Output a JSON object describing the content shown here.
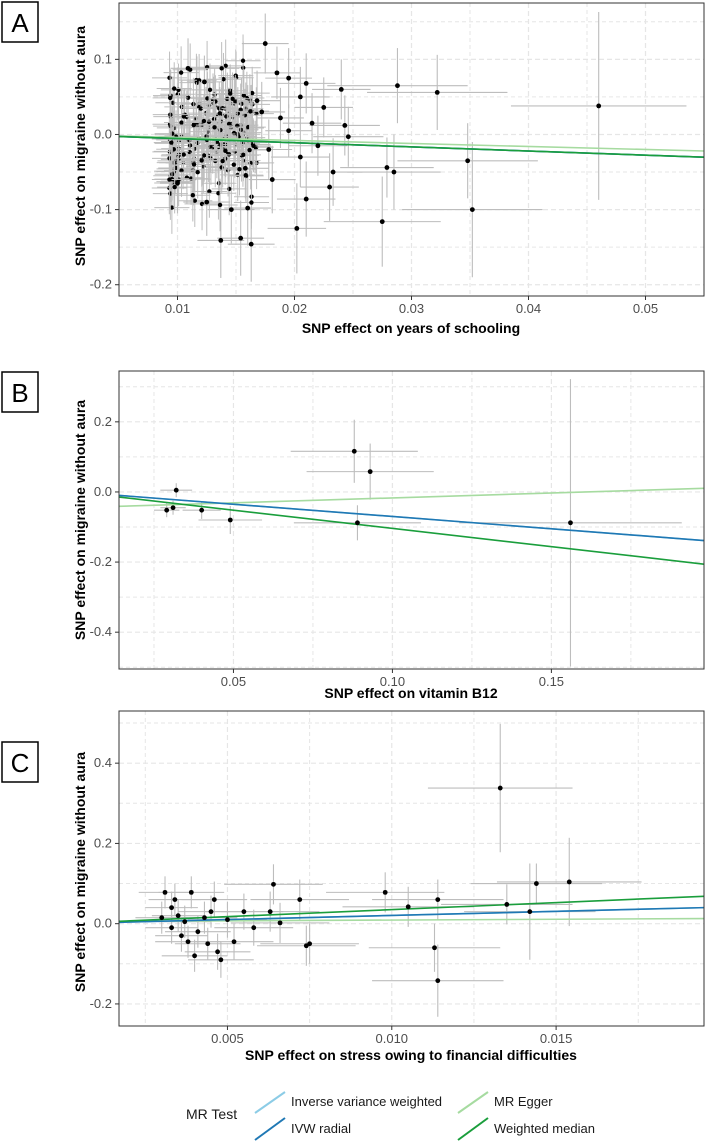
{
  "colors": {
    "ivw": "#8ccce6",
    "ivw_radial": "#1f78b4",
    "mr_egger": "#a6dba0",
    "weighted_median": "#1a9e3c",
    "point": "#000000",
    "errorbar": "#bdbdbd",
    "grid": "#e6e6e6"
  },
  "legend": {
    "title": "MR Test",
    "items": [
      {
        "key": "ivw",
        "label": "Inverse variance weighted"
      },
      {
        "key": "ivw_radial",
        "label": "IVW radial"
      },
      {
        "key": "mr_egger",
        "label": "MR Egger"
      },
      {
        "key": "weighted_median",
        "label": "Weighted median"
      }
    ]
  },
  "chart_data": [
    {
      "panel": "A",
      "type": "scatter",
      "xlabel": "SNP effect on years of schooling",
      "ylabel": "SNP effect on migraine without aura",
      "xlim": [
        0.005,
        0.055
      ],
      "ylim": [
        -0.215,
        0.175
      ],
      "xticks": [
        0.01,
        0.02,
        0.03,
        0.04,
        0.05
      ],
      "xtick_labels": [
        "0.01",
        "0.02",
        "0.03",
        "0.04",
        "0.05"
      ],
      "yticks": [
        -0.2,
        -0.1,
        0.0,
        0.1
      ],
      "ytick_labels": [
        "-0.2",
        "-0.1",
        "0.0",
        "0.1"
      ],
      "lines": [
        {
          "key": "ivw",
          "slope": -0.55
        },
        {
          "key": "mr_egger",
          "slope": -0.4
        },
        {
          "key": "ivw_radial",
          "slope": -0.55
        },
        {
          "key": "weighted_median",
          "slope": -0.55
        }
      ],
      "points": [
        {
          "x": 0.0109,
          "y": 0.088,
          "xe": 0.0015,
          "ye": 0.04
        },
        {
          "x": 0.0175,
          "y": 0.121,
          "xe": 0.002,
          "ye": 0.04
        },
        {
          "x": 0.0195,
          "y": 0.075,
          "xe": 0.002,
          "ye": 0.04
        },
        {
          "x": 0.0185,
          "y": 0.082,
          "xe": 0.002,
          "ye": 0.035
        },
        {
          "x": 0.0123,
          "y": 0.07,
          "xe": 0.0015,
          "ye": 0.035
        },
        {
          "x": 0.0205,
          "y": 0.05,
          "xe": 0.0025,
          "ye": 0.04
        },
        {
          "x": 0.021,
          "y": 0.068,
          "xe": 0.0025,
          "ye": 0.04
        },
        {
          "x": 0.0225,
          "y": 0.036,
          "xe": 0.0025,
          "ye": 0.04
        },
        {
          "x": 0.024,
          "y": 0.06,
          "xe": 0.0025,
          "ye": 0.04
        },
        {
          "x": 0.0243,
          "y": 0.012,
          "xe": 0.003,
          "ye": 0.04
        },
        {
          "x": 0.0246,
          "y": -0.003,
          "xe": 0.003,
          "ye": 0.04
        },
        {
          "x": 0.0288,
          "y": 0.065,
          "xe": 0.006,
          "ye": 0.05
        },
        {
          "x": 0.0322,
          "y": 0.056,
          "xe": 0.006,
          "ye": 0.05
        },
        {
          "x": 0.046,
          "y": 0.038,
          "xe": 0.0075,
          "ye": 0.125
        },
        {
          "x": 0.0348,
          "y": -0.035,
          "xe": 0.006,
          "ye": 0.05
        },
        {
          "x": 0.0352,
          "y": -0.1,
          "xe": 0.006,
          "ye": 0.09
        },
        {
          "x": 0.0275,
          "y": -0.116,
          "xe": 0.005,
          "ye": 0.06
        },
        {
          "x": 0.0279,
          "y": -0.044,
          "xe": 0.004,
          "ye": 0.04
        },
        {
          "x": 0.0285,
          "y": -0.05,
          "xe": 0.004,
          "ye": 0.05
        },
        {
          "x": 0.0202,
          "y": -0.125,
          "xe": 0.0025,
          "ye": 0.06
        },
        {
          "x": 0.021,
          "y": -0.086,
          "xe": 0.0025,
          "ye": 0.05
        },
        {
          "x": 0.0163,
          "y": -0.146,
          "xe": 0.002,
          "ye": 0.05
        },
        {
          "x": 0.0137,
          "y": -0.141,
          "xe": 0.002,
          "ye": 0.05
        },
        {
          "x": 0.0154,
          "y": -0.138,
          "xe": 0.002,
          "ye": 0.05
        },
        {
          "x": 0.016,
          "y": -0.098,
          "xe": 0.002,
          "ye": 0.05
        },
        {
          "x": 0.0146,
          "y": -0.1,
          "xe": 0.002,
          "ye": 0.045
        },
        {
          "x": 0.0125,
          "y": -0.09,
          "xe": 0.002,
          "ye": 0.045
        },
        {
          "x": 0.0181,
          "y": -0.06,
          "xe": 0.002,
          "ye": 0.045
        },
        {
          "x": 0.0233,
          "y": -0.05,
          "xe": 0.0025,
          "ye": 0.045
        },
        {
          "x": 0.01,
          "y": -0.065,
          "xe": 0.0015,
          "ye": 0.04
        },
        {
          "x": 0.0172,
          "y": 0.03,
          "xe": 0.002,
          "ye": 0.04
        },
        {
          "x": 0.0188,
          "y": 0.022,
          "xe": 0.002,
          "ye": 0.04
        },
        {
          "x": 0.0195,
          "y": 0.005,
          "xe": 0.002,
          "ye": 0.035
        },
        {
          "x": 0.0178,
          "y": -0.02,
          "xe": 0.002,
          "ye": 0.04
        },
        {
          "x": 0.0205,
          "y": -0.03,
          "xe": 0.0025,
          "ye": 0.04
        },
        {
          "x": 0.0168,
          "y": 0.045,
          "xe": 0.002,
          "ye": 0.04
        },
        {
          "x": 0.0158,
          "y": -0.045,
          "xe": 0.002,
          "ye": 0.04
        },
        {
          "x": 0.022,
          "y": -0.015,
          "xe": 0.0025,
          "ye": 0.04
        },
        {
          "x": 0.0215,
          "y": 0.015,
          "xe": 0.0025,
          "ye": 0.04
        },
        {
          "x": 0.023,
          "y": -0.07,
          "xe": 0.0025,
          "ye": 0.045
        }
      ]
    },
    {
      "panel": "B",
      "type": "scatter",
      "xlabel": "SNP effect on vitamin B12",
      "ylabel": "SNP effect on migraine without aura",
      "xlim": [
        0.014,
        0.198
      ],
      "ylim": [
        -0.505,
        0.345
      ],
      "xticks": [
        0.05,
        0.1,
        0.15
      ],
      "xtick_labels": [
        "0.05",
        "0.10",
        "0.15"
      ],
      "yticks": [
        -0.4,
        -0.2,
        0.0,
        0.2
      ],
      "ytick_labels": [
        "-0.4",
        "-0.2",
        "0.0",
        "0.2"
      ],
      "lines": [
        {
          "key": "mr_egger",
          "slope": 0.28,
          "intercept": -0.045
        },
        {
          "key": "ivw",
          "slope": -0.7,
          "intercept": 0.0
        },
        {
          "key": "ivw_radial",
          "slope": -0.7,
          "intercept": 0.0
        },
        {
          "key": "weighted_median",
          "slope": -1.04,
          "intercept": 0.0
        }
      ],
      "points": [
        {
          "x": 0.029,
          "y": -0.052,
          "xe": 0.004,
          "ye": 0.02
        },
        {
          "x": 0.031,
          "y": -0.045,
          "xe": 0.004,
          "ye": 0.02
        },
        {
          "x": 0.032,
          "y": 0.005,
          "xe": 0.005,
          "ye": 0.02
        },
        {
          "x": 0.04,
          "y": -0.052,
          "xe": 0.006,
          "ye": 0.025
        },
        {
          "x": 0.049,
          "y": -0.08,
          "xe": 0.01,
          "ye": 0.04
        },
        {
          "x": 0.088,
          "y": 0.116,
          "xe": 0.02,
          "ye": 0.09
        },
        {
          "x": 0.093,
          "y": 0.058,
          "xe": 0.02,
          "ye": 0.08
        },
        {
          "x": 0.089,
          "y": -0.088,
          "xe": 0.02,
          "ye": 0.05
        },
        {
          "x": 0.156,
          "y": -0.088,
          "xe": 0.035,
          "ye": 0.41
        }
      ]
    },
    {
      "panel": "C",
      "type": "scatter",
      "xlabel": "SNP effect on stress owing to financial difficulties",
      "ylabel": "SNP effect on migraine without aura",
      "xlim": [
        0.0017,
        0.0195
      ],
      "ylim": [
        -0.255,
        0.53
      ],
      "xticks": [
        0.005,
        0.01,
        0.015
      ],
      "xtick_labels": [
        "0.005",
        "0.010",
        "0.015"
      ],
      "yticks": [
        -0.2,
        0.0,
        0.2,
        0.4
      ],
      "ytick_labels": [
        "-0.2",
        "0.0",
        "0.2",
        "0.4"
      ],
      "lines": [
        {
          "key": "mr_egger",
          "slope": 0.4,
          "intercept": 0.005
        },
        {
          "key": "ivw",
          "slope": 2.05,
          "intercept": 0.0
        },
        {
          "key": "ivw_radial",
          "slope": 2.05,
          "intercept": 0.0
        },
        {
          "key": "weighted_median",
          "slope": 3.5,
          "intercept": 0.0
        }
      ],
      "points": [
        {
          "x": 0.0133,
          "y": 0.338,
          "xe": 0.0022,
          "ye": 0.16
        },
        {
          "x": 0.0154,
          "y": 0.104,
          "xe": 0.0022,
          "ye": 0.11
        },
        {
          "x": 0.0144,
          "y": 0.1,
          "xe": 0.002,
          "ye": 0.05
        },
        {
          "x": 0.0135,
          "y": 0.048,
          "xe": 0.002,
          "ye": 0.05
        },
        {
          "x": 0.0142,
          "y": 0.03,
          "xe": 0.002,
          "ye": 0.12
        },
        {
          "x": 0.0113,
          "y": -0.06,
          "xe": 0.002,
          "ye": 0.06
        },
        {
          "x": 0.0114,
          "y": -0.142,
          "xe": 0.002,
          "ye": 0.09
        },
        {
          "x": 0.0114,
          "y": 0.06,
          "xe": 0.002,
          "ye": 0.05
        },
        {
          "x": 0.0105,
          "y": 0.042,
          "xe": 0.002,
          "ye": 0.05
        },
        {
          "x": 0.0098,
          "y": 0.078,
          "xe": 0.0018,
          "ye": 0.05
        },
        {
          "x": 0.0064,
          "y": 0.098,
          "xe": 0.0015,
          "ye": 0.05
        },
        {
          "x": 0.0072,
          "y": 0.06,
          "xe": 0.0015,
          "ye": 0.05
        },
        {
          "x": 0.0063,
          "y": 0.03,
          "xe": 0.0015,
          "ye": 0.05
        },
        {
          "x": 0.0074,
          "y": -0.055,
          "xe": 0.0015,
          "ye": 0.05
        },
        {
          "x": 0.0075,
          "y": -0.05,
          "xe": 0.0015,
          "ye": 0.05
        },
        {
          "x": 0.0066,
          "y": 0.002,
          "xe": 0.0015,
          "ye": 0.05
        },
        {
          "x": 0.0055,
          "y": 0.03,
          "xe": 0.0012,
          "ye": 0.045
        },
        {
          "x": 0.0058,
          "y": -0.01,
          "xe": 0.0012,
          "ye": 0.045
        },
        {
          "x": 0.0052,
          "y": -0.045,
          "xe": 0.0012,
          "ye": 0.045
        },
        {
          "x": 0.0048,
          "y": -0.09,
          "xe": 0.001,
          "ye": 0.045
        },
        {
          "x": 0.0046,
          "y": 0.06,
          "xe": 0.001,
          "ye": 0.045
        },
        {
          "x": 0.0047,
          "y": -0.07,
          "xe": 0.001,
          "ye": 0.045
        },
        {
          "x": 0.004,
          "y": -0.08,
          "xe": 0.001,
          "ye": 0.04
        },
        {
          "x": 0.0039,
          "y": 0.078,
          "xe": 0.001,
          "ye": 0.04
        },
        {
          "x": 0.0036,
          "y": -0.03,
          "xe": 0.0008,
          "ye": 0.04
        },
        {
          "x": 0.0034,
          "y": 0.06,
          "xe": 0.0008,
          "ye": 0.04
        },
        {
          "x": 0.0031,
          "y": 0.078,
          "xe": 0.0008,
          "ye": 0.04
        },
        {
          "x": 0.0033,
          "y": 0.04,
          "xe": 0.0008,
          "ye": 0.04
        },
        {
          "x": 0.0035,
          "y": 0.02,
          "xe": 0.0008,
          "ye": 0.04
        },
        {
          "x": 0.0037,
          "y": 0.005,
          "xe": 0.0008,
          "ye": 0.04
        },
        {
          "x": 0.0033,
          "y": -0.01,
          "xe": 0.0008,
          "ye": 0.04
        },
        {
          "x": 0.003,
          "y": 0.015,
          "xe": 0.0008,
          "ye": 0.04
        },
        {
          "x": 0.0043,
          "y": 0.015,
          "xe": 0.001,
          "ye": 0.04
        },
        {
          "x": 0.0041,
          "y": -0.02,
          "xe": 0.001,
          "ye": 0.04
        },
        {
          "x": 0.0045,
          "y": 0.03,
          "xe": 0.001,
          "ye": 0.04
        },
        {
          "x": 0.0038,
          "y": -0.045,
          "xe": 0.001,
          "ye": 0.04
        },
        {
          "x": 0.0044,
          "y": -0.05,
          "xe": 0.001,
          "ye": 0.04
        },
        {
          "x": 0.005,
          "y": 0.01,
          "xe": 0.0012,
          "ye": 0.045
        }
      ]
    }
  ]
}
